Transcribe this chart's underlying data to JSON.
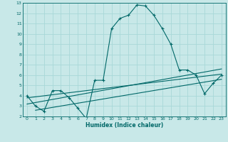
{
  "title": "",
  "xlabel": "Humidex (Indice chaleur)",
  "bg_color": "#c8e8e8",
  "grid_color": "#a8d8d8",
  "line_color": "#006868",
  "xlim": [
    -0.5,
    23.5
  ],
  "ylim": [
    2,
    13
  ],
  "xticks": [
    0,
    1,
    2,
    3,
    4,
    5,
    6,
    7,
    8,
    9,
    10,
    11,
    12,
    13,
    14,
    15,
    16,
    17,
    18,
    19,
    20,
    21,
    22,
    23
  ],
  "yticks": [
    2,
    3,
    4,
    5,
    6,
    7,
    8,
    9,
    10,
    11,
    12,
    13
  ],
  "series": [
    [
      0,
      4
    ],
    [
      1,
      3
    ],
    [
      2,
      2.5
    ],
    [
      3,
      4.5
    ],
    [
      4,
      4.5
    ],
    [
      5,
      3.8
    ],
    [
      6,
      2.8
    ],
    [
      7,
      1.8
    ],
    [
      8,
      5.5
    ],
    [
      9,
      5.5
    ],
    [
      10,
      10.5
    ],
    [
      11,
      11.5
    ],
    [
      12,
      11.8
    ],
    [
      13,
      12.8
    ],
    [
      14,
      12.7
    ],
    [
      15,
      11.8
    ],
    [
      16,
      10.5
    ],
    [
      17,
      9
    ],
    [
      18,
      6.5
    ],
    [
      19,
      6.5
    ],
    [
      20,
      6
    ],
    [
      21,
      4.2
    ],
    [
      22,
      5.2
    ],
    [
      23,
      6
    ]
  ],
  "line1": [
    [
      0,
      3.8
    ],
    [
      23,
      6.1
    ]
  ],
  "line2": [
    [
      1,
      2.6
    ],
    [
      23,
      5.6
    ]
  ],
  "line3": [
    [
      0,
      3.2
    ],
    [
      23,
      6.6
    ]
  ]
}
